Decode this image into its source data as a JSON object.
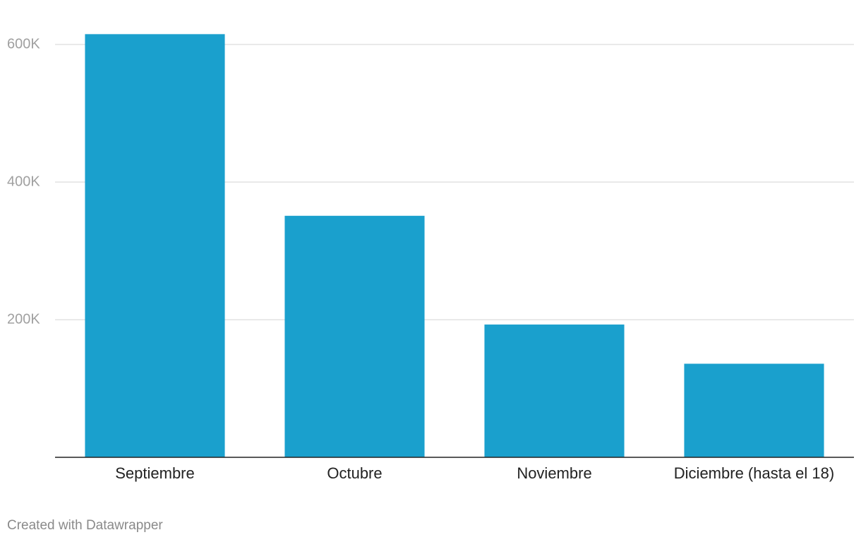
{
  "chart_data": {
    "type": "bar",
    "categories": [
      "Septiembre",
      "Octubre",
      "Noviembre",
      "Diciembre (hasta el 18)"
    ],
    "values": [
      615000,
      351000,
      193000,
      136000
    ],
    "color": "#1aa0cd",
    "ylim": [
      0,
      600000
    ],
    "yticks": [
      {
        "value": 200000,
        "label": "200K"
      },
      {
        "value": 400000,
        "label": "400K"
      },
      {
        "value": 600000,
        "label": "600K"
      }
    ],
    "grid": true,
    "footer": "Created with Datawrapper"
  }
}
